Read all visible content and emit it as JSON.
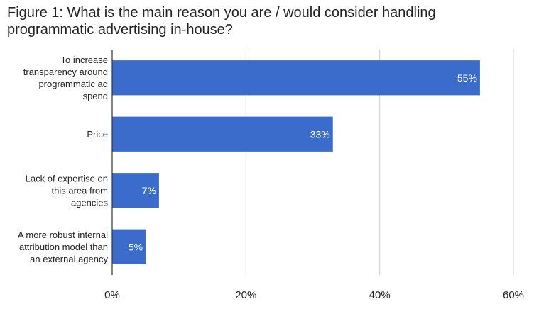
{
  "chart_data": {
    "type": "bar",
    "orientation": "horizontal",
    "title_lines": [
      "Figure 1: What is the main reason you are / would consider handling",
      "programmatic advertising in-house?"
    ],
    "categories": [
      [
        "To increase",
        "transparency around",
        "programmatic ad",
        "spend"
      ],
      [
        "Price"
      ],
      [
        "Lack of expertise on",
        "this area from",
        "agencies"
      ],
      [
        "A more robust internal",
        "attribution model than",
        "an external agency"
      ]
    ],
    "values": [
      55,
      33,
      7,
      5
    ],
    "data_labels": [
      "55%",
      "33%",
      "7%",
      "5%"
    ],
    "xlim": [
      0,
      60
    ],
    "ticks": [
      0,
      20,
      40,
      60
    ],
    "tick_labels": [
      "0%",
      "20%",
      "40%",
      "60%"
    ],
    "grid": true,
    "bar_color": "#3b6ccc",
    "grid_color": "#cccccc",
    "axis_color": "#333333"
  }
}
